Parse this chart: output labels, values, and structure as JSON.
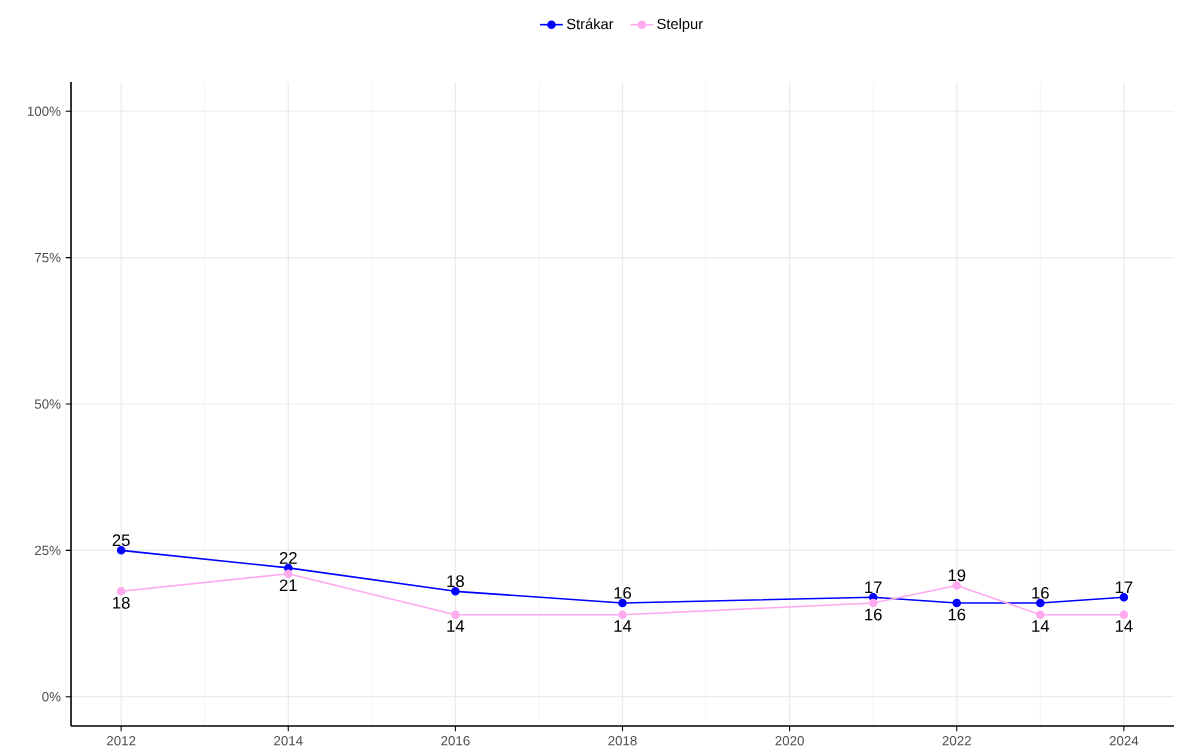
{
  "chart_data": {
    "type": "line",
    "x": [
      2012,
      2014,
      2016,
      2018,
      2021,
      2022,
      2023,
      2024
    ],
    "series": [
      {
        "name": "Strákar",
        "color": "#0000ff",
        "values": [
          25,
          22,
          18,
          16,
          17,
          16,
          16,
          17
        ]
      },
      {
        "name": "Stelpur",
        "color": "#ffaaee",
        "values": [
          18,
          21,
          14,
          14,
          16,
          19,
          14,
          14
        ]
      }
    ],
    "xlim": [
      2011.4,
      2024.6
    ],
    "xticks": [
      2012,
      2014,
      2016,
      2018,
      2020,
      2022,
      2024
    ],
    "ylim": [
      -5,
      105
    ],
    "yticks": [
      {
        "value": 0,
        "label": "0%"
      },
      {
        "value": 25,
        "label": "25%"
      },
      {
        "value": 50,
        "label": "50%"
      },
      {
        "value": 75,
        "label": "75%"
      },
      {
        "value": 100,
        "label": "100%"
      }
    ],
    "data_labels": true,
    "grid": true,
    "legend": "top",
    "marker": "circle",
    "line_style": "solid"
  }
}
